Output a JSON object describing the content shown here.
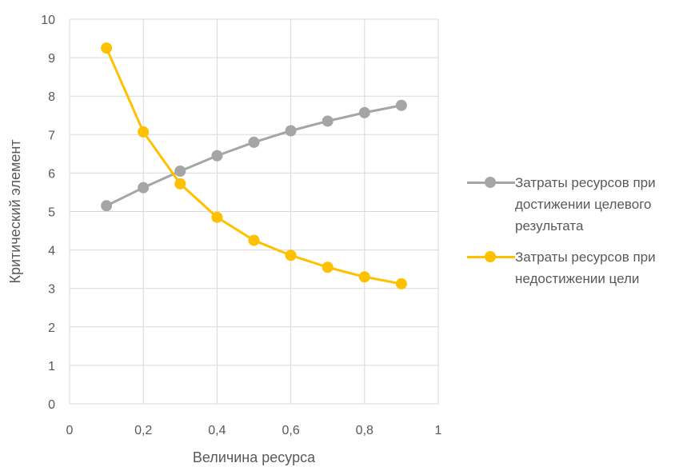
{
  "chart_data": {
    "type": "line",
    "title": "",
    "xlabel": "Величина ресурса",
    "ylabel": "Критический элемент",
    "xlim": [
      0,
      1
    ],
    "ylim": [
      0,
      10
    ],
    "x_ticks": [
      0,
      0.2,
      0.4,
      0.6,
      0.8,
      1
    ],
    "x_tick_labels": [
      "0",
      "0,2",
      "0,4",
      "0,6",
      "0,8",
      "1"
    ],
    "y_ticks": [
      0,
      1,
      2,
      3,
      4,
      5,
      6,
      7,
      8,
      9,
      10
    ],
    "y_tick_labels": [
      "0",
      "1",
      "2",
      "3",
      "4",
      "5",
      "6",
      "7",
      "8",
      "9",
      "10"
    ],
    "grid": true,
    "legend_position": "right",
    "series": [
      {
        "name": "Затраты ресурсов при достижении целевого результата",
        "color": "#A5A5A5",
        "x": [
          0.1,
          0.2,
          0.3,
          0.4,
          0.5,
          0.6,
          0.7,
          0.8,
          0.9
        ],
        "y": [
          5.15,
          5.62,
          6.05,
          6.45,
          6.8,
          7.1,
          7.35,
          7.57,
          7.76
        ]
      },
      {
        "name": "Затраты ресурсов при недостижении цели",
        "color": "#FFC000",
        "x": [
          0.1,
          0.2,
          0.3,
          0.4,
          0.5,
          0.6,
          0.7,
          0.8,
          0.9
        ],
        "y": [
          9.25,
          7.07,
          5.72,
          4.85,
          4.25,
          3.86,
          3.55,
          3.3,
          3.12
        ]
      }
    ],
    "legend_lines": [
      [
        "Затраты ресурсов при",
        "достижении целевого",
        "результата"
      ],
      [
        "Затраты ресурсов при",
        "недостижении цели"
      ]
    ]
  }
}
